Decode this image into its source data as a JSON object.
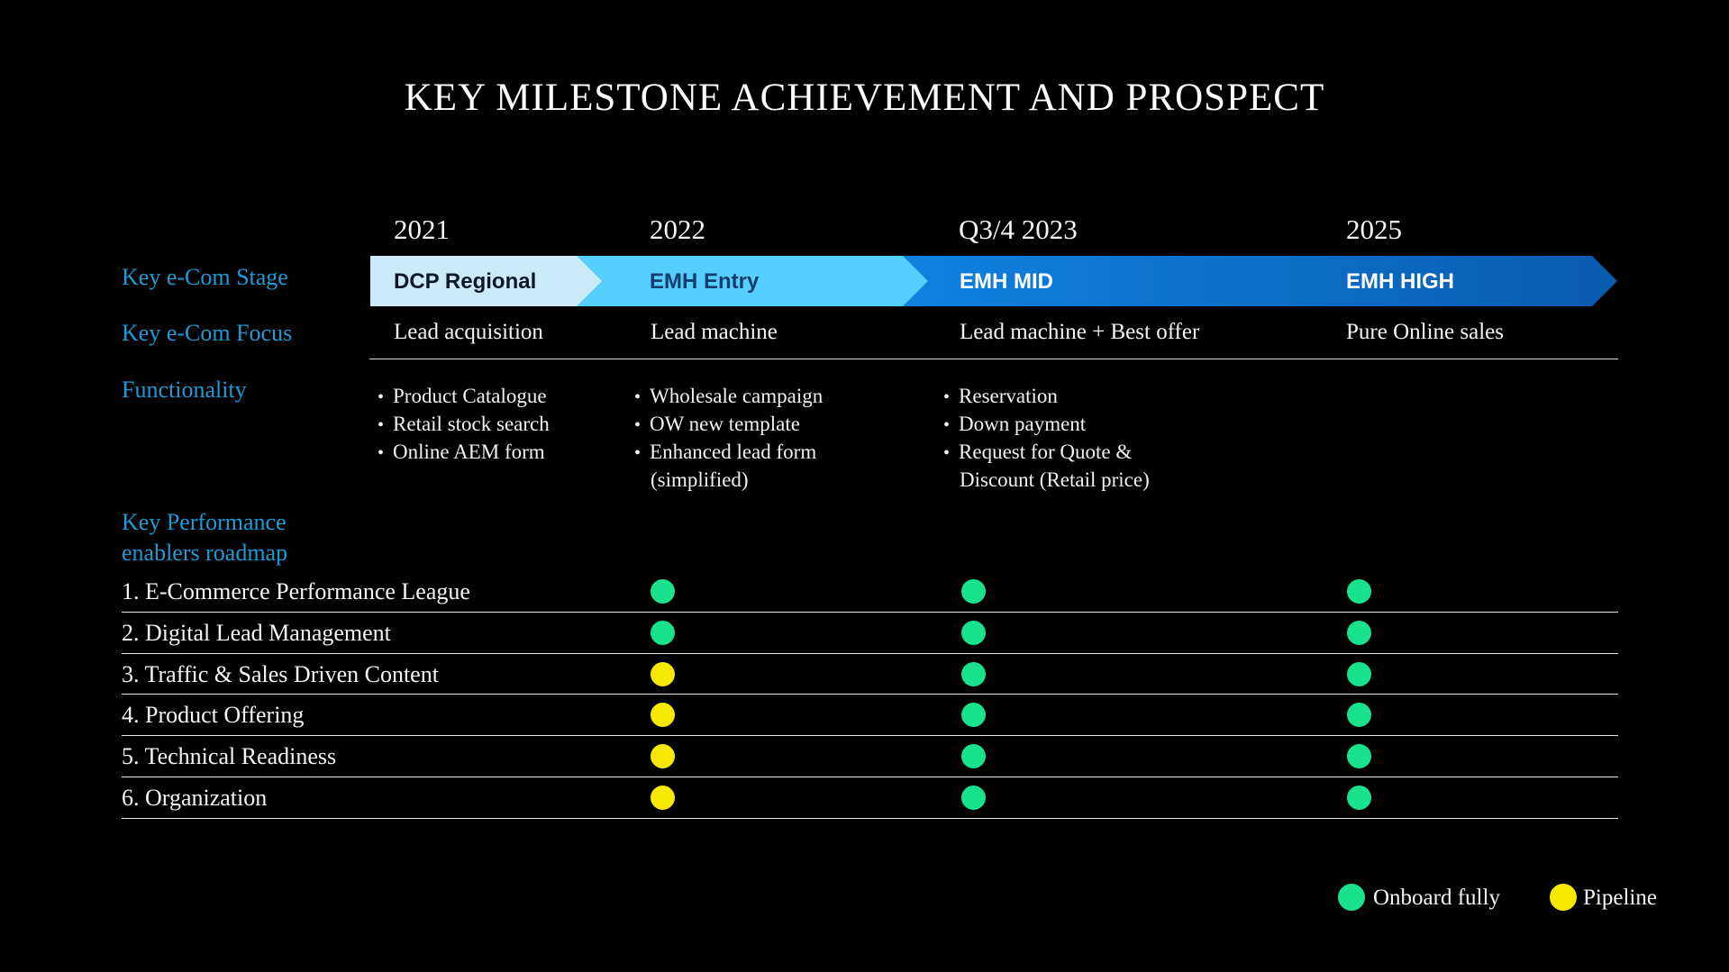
{
  "title": "KEY MILESTONE ACHIEVEMENT AND PROSPECT",
  "colors": {
    "background": "#000000",
    "side_label_blue": "#1E9BD7",
    "stage1_bg": "#CDEAFA",
    "stage2_bg": "#55CEFB",
    "stage_gradient_from": "#0F82DF",
    "stage_gradient_to": "#0A5BB0",
    "onboard_green": "#19E28C",
    "pipeline_yellow": "#F7EA00"
  },
  "row_labels": {
    "stage": "Key e-Com Stage",
    "focus": "Key e-Com Focus",
    "functionality": "Functionality",
    "enablers_line1": "Key  Performance",
    "enablers_line2": "enablers roadmap"
  },
  "columns": [
    {
      "year": "2021",
      "stage": "DCP Regional",
      "focus": "Lead acquisition",
      "functionality": [
        "Product Catalogue",
        "Retail stock search",
        "Online AEM form"
      ]
    },
    {
      "year": "2022",
      "stage": "EMH Entry",
      "focus": "Lead machine",
      "functionality": [
        "Wholesale campaign",
        "OW new template",
        "Enhanced lead form (simplified)"
      ]
    },
    {
      "year": "Q3/4 2023",
      "stage": "EMH MID",
      "focus": "Lead machine + Best offer",
      "functionality": [
        "Reservation",
        "Down payment",
        "Request for Quote & Discount (Retail price)"
      ]
    },
    {
      "year": "2025",
      "stage": "EMH HIGH",
      "focus": "Pure Online sales",
      "functionality": []
    }
  ],
  "roadmap": {
    "rows": [
      {
        "label": "1. E-Commerce Performance League",
        "cells": [
          "onboard",
          "onboard",
          "onboard"
        ]
      },
      {
        "label": "2. Digital Lead Management",
        "cells": [
          "onboard",
          "onboard",
          "onboard"
        ]
      },
      {
        "label": "3. Traffic & Sales Driven Content",
        "cells": [
          "pipeline",
          "onboard",
          "onboard"
        ]
      },
      {
        "label": "4. Product Offering",
        "cells": [
          "pipeline",
          "onboard",
          "onboard"
        ]
      },
      {
        "label": "5. Technical Readiness",
        "cells": [
          "pipeline",
          "onboard",
          "onboard"
        ]
      },
      {
        "label": "6. Organization",
        "cells": [
          "pipeline",
          "onboard",
          "onboard"
        ]
      }
    ]
  },
  "legend": {
    "items": [
      {
        "key": "onboard",
        "label": "Onboard fully",
        "color": "#19E28C"
      },
      {
        "key": "pipeline",
        "label": "Pipeline",
        "color": "#F7EA00"
      }
    ]
  }
}
